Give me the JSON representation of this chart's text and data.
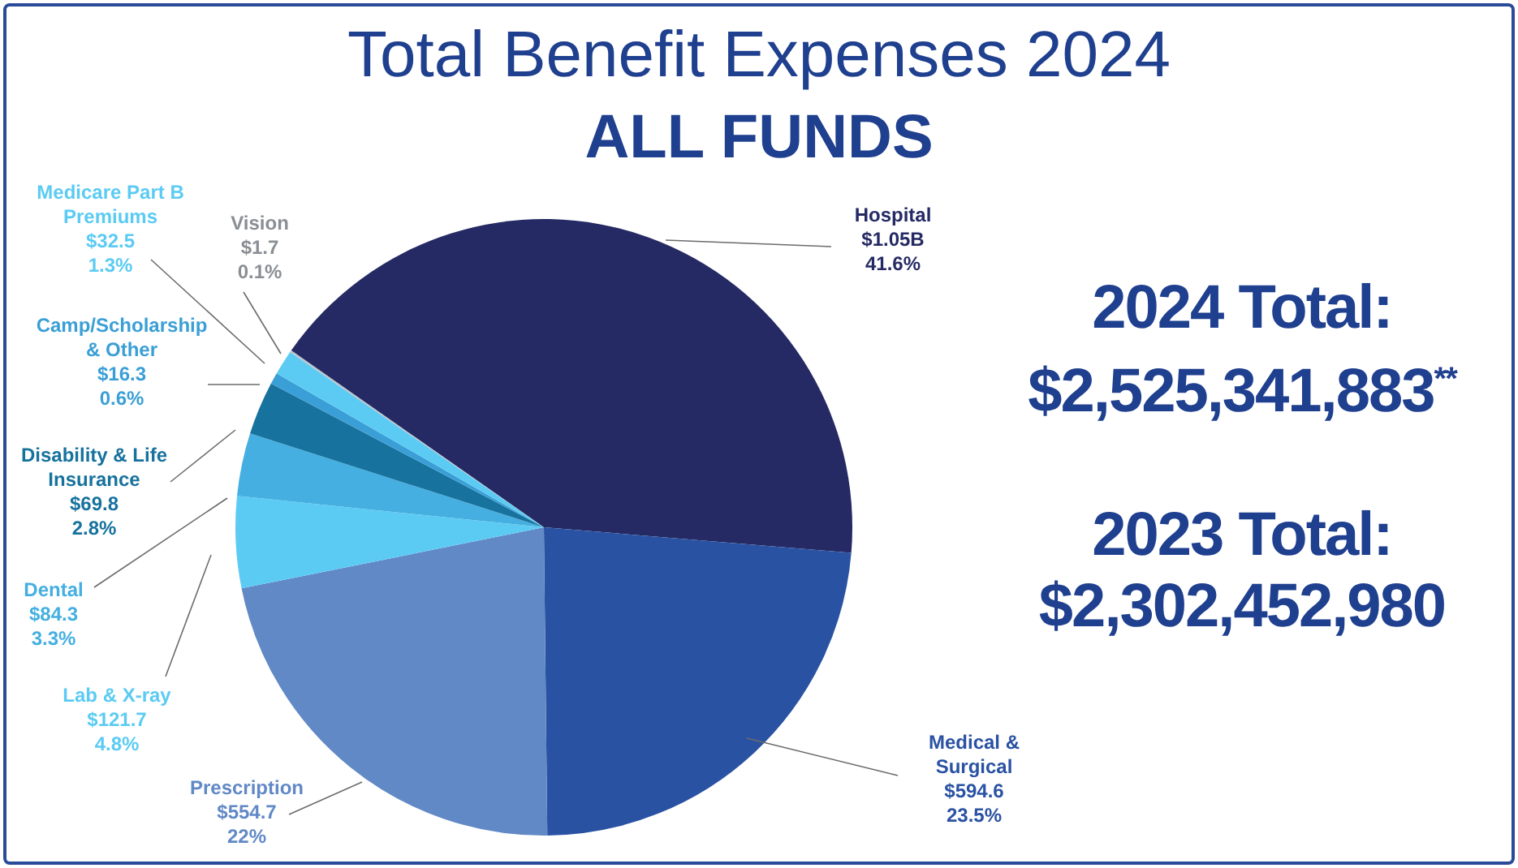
{
  "chart_data": {
    "type": "pie",
    "title": "Total Benefit Expenses 2024",
    "subtitle": "ALL FUNDS",
    "categories": [
      "Hospital",
      "Medical & Surgical",
      "Prescription",
      "Lab & X-ray",
      "Dental",
      "Disability & Life Insurance",
      "Camp/Scholarship & Other",
      "Medicare Part B Premiums",
      "Vision"
    ],
    "values": [
      41.6,
      23.5,
      22,
      4.8,
      3.3,
      2.8,
      0.6,
      1.3,
      0.1
    ],
    "colors": [
      "#252a64",
      "#2a52a3",
      "#6189c6",
      "#5ccbf3",
      "#45afe1",
      "#17729e",
      "#3a9fd6",
      "#5ccbf3",
      "#b8c4cc"
    ],
    "value_labels": [
      "$1.05B 41.6%",
      "$594.6 23.5%",
      "$554.7 22%",
      "$121.7 4.8%",
      "$84.3 3.3%",
      "$69.8 2.8%",
      "$16.3 0.6%",
      "$32.5 1.3%",
      "$1.7 0.1%"
    ],
    "legend": false,
    "annotations": [
      "2024 Total: $2,525,341,883$^{**}$",
      "2023 Total: $2,302,452,980"
    ]
  }
}
